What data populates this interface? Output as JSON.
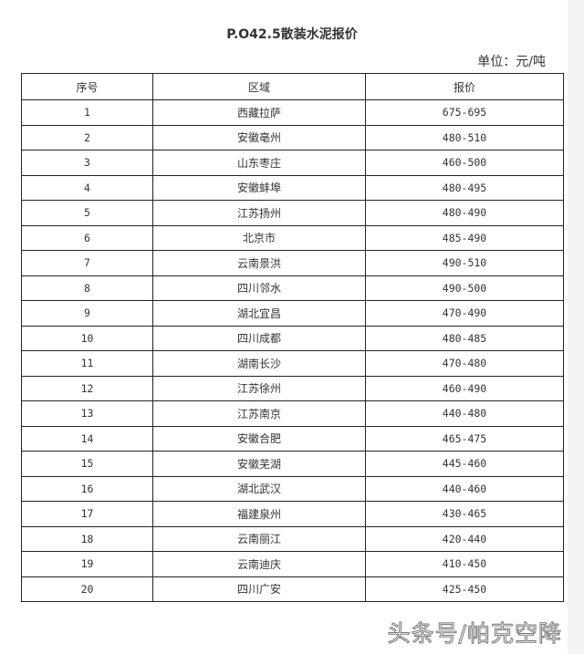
{
  "title": "P.O42.5散装水泥报价",
  "unit": "单位：元/吨",
  "table": {
    "headers": [
      "序号",
      "区域",
      "报价"
    ],
    "rows": [
      [
        "1",
        "西藏拉萨",
        "675-695"
      ],
      [
        "2",
        "安徽亳州",
        "480-510"
      ],
      [
        "3",
        "山东枣庄",
        "460-500"
      ],
      [
        "4",
        "安徽蚌埠",
        "480-495"
      ],
      [
        "5",
        "江苏扬州",
        "480-490"
      ],
      [
        "6",
        "北京市",
        "485-490"
      ],
      [
        "7",
        "云南景洪",
        "490-510"
      ],
      [
        "8",
        "四川邻水",
        "490-500"
      ],
      [
        "9",
        "湖北宜昌",
        "470-490"
      ],
      [
        "10",
        "四川成都",
        "480-485"
      ],
      [
        "11",
        "湖南长沙",
        "470-480"
      ],
      [
        "12",
        "江苏徐州",
        "460-490"
      ],
      [
        "13",
        "江苏南京",
        "440-480"
      ],
      [
        "14",
        "安徽合肥",
        "465-475"
      ],
      [
        "15",
        "安徽芜湖",
        "445-460"
      ],
      [
        "16",
        "湖北武汉",
        "440-460"
      ],
      [
        "17",
        "福建泉州",
        "430-465"
      ],
      [
        "18",
        "云南丽江",
        "420-440"
      ],
      [
        "19",
        "云南迪庆",
        "410-450"
      ],
      [
        "20",
        "四川广安",
        "425-450"
      ]
    ]
  },
  "watermark": "头条号/帕克空降"
}
